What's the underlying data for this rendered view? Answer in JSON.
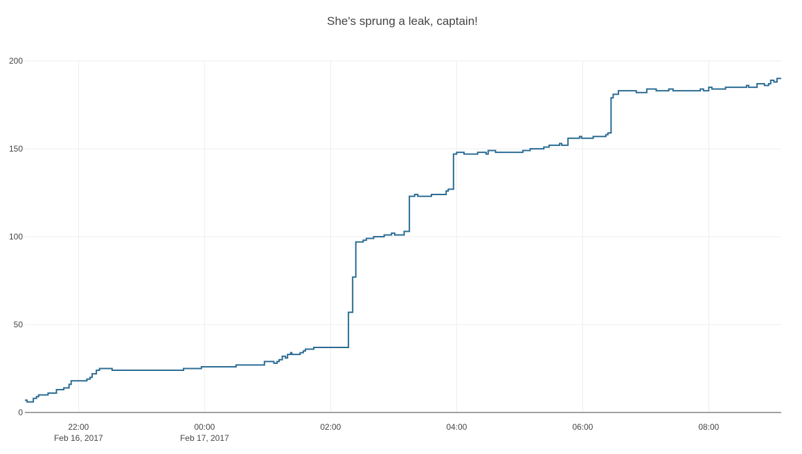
{
  "chart_data": {
    "type": "line",
    "title": "She's sprung a leak, captain!",
    "line_shape": "hv",
    "grid": true,
    "x": [
      "2017-02-16 21:09",
      "2017-02-16 21:11",
      "2017-02-16 21:17",
      "2017-02-16 21:20",
      "2017-02-16 21:22",
      "2017-02-16 21:31",
      "2017-02-16 21:39",
      "2017-02-16 21:46",
      "2017-02-16 21:51",
      "2017-02-16 21:53",
      "2017-02-16 22:08",
      "2017-02-16 22:11",
      "2017-02-16 22:13",
      "2017-02-16 22:17",
      "2017-02-16 22:20",
      "2017-02-16 22:32",
      "2017-02-16 23:40",
      "2017-02-16 23:57",
      "2017-02-17 00:30",
      "2017-02-17 00:57",
      "2017-02-17 01:06",
      "2017-02-17 01:09",
      "2017-02-17 01:11",
      "2017-02-17 01:14",
      "2017-02-17 01:17",
      "2017-02-17 01:19",
      "2017-02-17 01:22",
      "2017-02-17 01:23",
      "2017-02-17 01:31",
      "2017-02-17 01:34",
      "2017-02-17 01:36",
      "2017-02-17 01:44",
      "2017-02-17 02:17",
      "2017-02-17 02:21",
      "2017-02-17 02:24",
      "2017-02-17 02:31",
      "2017-02-17 02:34",
      "2017-02-17 02:41",
      "2017-02-17 02:51",
      "2017-02-17 02:58",
      "2017-02-17 03:01",
      "2017-02-17 03:10",
      "2017-02-17 03:15",
      "2017-02-17 03:20",
      "2017-02-17 03:23",
      "2017-02-17 03:36",
      "2017-02-17 03:50",
      "2017-02-17 03:52",
      "2017-02-17 03:57",
      "2017-02-17 04:00",
      "2017-02-17 04:07",
      "2017-02-17 04:20",
      "2017-02-17 04:28",
      "2017-02-17 04:30",
      "2017-02-17 04:37",
      "2017-02-17 05:03",
      "2017-02-17 05:10",
      "2017-02-17 05:23",
      "2017-02-17 05:28",
      "2017-02-17 05:38",
      "2017-02-17 05:40",
      "2017-02-17 05:46",
      "2017-02-17 05:57",
      "2017-02-17 05:59",
      "2017-02-17 06:10",
      "2017-02-17 06:22",
      "2017-02-17 06:24",
      "2017-02-17 06:27",
      "2017-02-17 06:29",
      "2017-02-17 06:34",
      "2017-02-17 06:51",
      "2017-02-17 07:01",
      "2017-02-17 07:10",
      "2017-02-17 07:22",
      "2017-02-17 07:26",
      "2017-02-17 07:52",
      "2017-02-17 07:55",
      "2017-02-17 08:00",
      "2017-02-17 08:03",
      "2017-02-17 08:16",
      "2017-02-17 08:32",
      "2017-02-17 08:36",
      "2017-02-17 08:38",
      "2017-02-17 08:46",
      "2017-02-17 08:53",
      "2017-02-17 08:57",
      "2017-02-17 08:59",
      "2017-02-17 09:02",
      "2017-02-17 09:05",
      "2017-02-17 09:09"
    ],
    "values": [
      7,
      6,
      8,
      9,
      10,
      11,
      13,
      14,
      16,
      18,
      19,
      20,
      22,
      24,
      25,
      24,
      25,
      26,
      27,
      29,
      28,
      29,
      30,
      32,
      31,
      33,
      34,
      33,
      34,
      35,
      36,
      37,
      57,
      77,
      97,
      98,
      99,
      100,
      101,
      102,
      101,
      103,
      123,
      124,
      123,
      124,
      126,
      127,
      147,
      148,
      147,
      148,
      147,
      149,
      148,
      149,
      150,
      151,
      152,
      153,
      152,
      156,
      157,
      156,
      157,
      158,
      159,
      179,
      181,
      183,
      182,
      184,
      183,
      184,
      183,
      184,
      183,
      185,
      184,
      185,
      185,
      186,
      185,
      187,
      186,
      187,
      189,
      188,
      190,
      190
    ],
    "color": "#2b6c94",
    "xlim": [
      "2017-02-16 21:09",
      "2017-02-17 09:09"
    ],
    "xticks": [
      {
        "value": "2017-02-16 22:00",
        "label": "22:00\nFeb 16, 2017"
      },
      {
        "value": "2017-02-17 00:00",
        "label": "00:00\nFeb 17, 2017"
      },
      {
        "value": "2017-02-17 02:00",
        "label": "02:00"
      },
      {
        "value": "2017-02-17 04:00",
        "label": "04:00"
      },
      {
        "value": "2017-02-17 06:00",
        "label": "06:00"
      },
      {
        "value": "2017-02-17 08:00",
        "label": "08:00"
      }
    ],
    "ylim": [
      0,
      200
    ],
    "yticks": [
      0,
      50,
      100,
      150,
      200
    ]
  }
}
